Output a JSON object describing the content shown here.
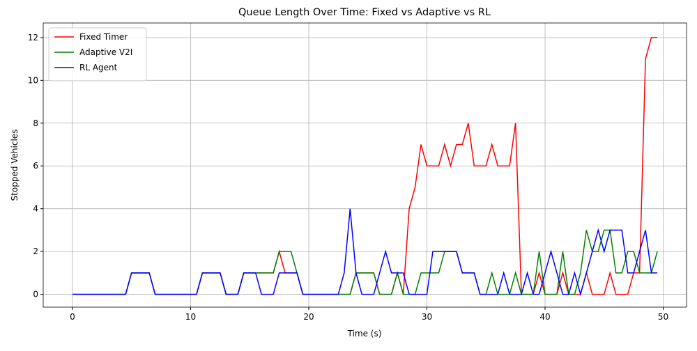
{
  "chart_data": {
    "type": "line",
    "title": "Queue Length Over Time: Fixed vs Adaptive vs RL",
    "xlabel": "Time (s)",
    "ylabel": "Stopped Vehicles",
    "x": [
      0,
      0.5,
      1,
      1.5,
      2,
      2.5,
      3,
      3.5,
      4,
      4.5,
      5,
      5.5,
      6,
      6.5,
      7,
      7.5,
      8,
      8.5,
      9,
      9.5,
      10,
      10.5,
      11,
      11.5,
      12,
      12.5,
      13,
      13.5,
      14,
      14.5,
      15,
      15.5,
      16,
      16.5,
      17,
      17.5,
      18,
      18.5,
      19,
      19.5,
      20,
      20.5,
      21,
      21.5,
      22,
      22.5,
      23,
      23.5,
      24,
      24.5,
      25,
      25.5,
      26,
      26.5,
      27,
      27.5,
      28,
      28.5,
      29,
      29.5,
      30,
      30.5,
      31,
      31.5,
      32,
      32.5,
      33,
      33.5,
      34,
      34.5,
      35,
      35.5,
      36,
      36.5,
      37,
      37.5,
      38,
      38.5,
      39,
      39.5,
      40,
      40.5,
      41,
      41.5,
      42,
      42.5,
      43,
      43.5,
      44,
      44.5,
      45,
      45.5,
      46,
      46.5,
      47,
      47.5,
      48,
      48.5,
      49,
      49.5
    ],
    "series": [
      {
        "name": "Fixed Timer",
        "color": "#ff0000",
        "values": [
          0,
          0,
          0,
          0,
          0,
          0,
          0,
          0,
          0,
          0,
          1,
          1,
          1,
          1,
          0,
          0,
          0,
          0,
          0,
          0,
          0,
          0,
          1,
          1,
          1,
          1,
          0,
          0,
          0,
          1,
          1,
          1,
          1,
          1,
          1,
          2,
          1,
          1,
          1,
          0,
          0,
          0,
          0,
          0,
          0,
          0,
          0,
          0,
          1,
          1,
          1,
          1,
          0,
          0,
          0,
          1,
          0,
          4,
          5,
          7,
          6,
          6,
          6,
          7,
          6,
          7,
          7,
          8,
          6,
          6,
          6,
          7,
          6,
          6,
          6,
          8,
          0,
          0,
          0,
          1,
          0,
          0,
          0,
          1,
          0,
          0,
          0,
          1,
          0,
          0,
          0,
          1,
          0,
          0,
          0,
          1,
          1,
          11,
          12,
          12
        ]
      },
      {
        "name": "Adaptive V2I",
        "color": "#008000",
        "values": [
          0,
          0,
          0,
          0,
          0,
          0,
          0,
          0,
          0,
          0,
          1,
          1,
          1,
          1,
          0,
          0,
          0,
          0,
          0,
          0,
          0,
          0,
          1,
          1,
          1,
          1,
          0,
          0,
          0,
          1,
          1,
          1,
          1,
          1,
          1,
          2,
          2,
          2,
          1,
          0,
          0,
          0,
          0,
          0,
          0,
          0,
          0,
          0,
          1,
          1,
          1,
          1,
          0,
          0,
          0,
          1,
          0,
          0,
          0,
          1,
          1,
          1,
          1,
          2,
          2,
          2,
          1,
          1,
          1,
          0,
          0,
          1,
          0,
          0,
          0,
          1,
          0,
          0,
          0,
          2,
          0,
          0,
          0,
          2,
          0,
          0,
          1,
          3,
          2,
          2,
          3,
          3,
          1,
          1,
          2,
          2,
          1,
          1,
          1,
          2
        ]
      },
      {
        "name": "RL Agent",
        "color": "#0000ff",
        "values": [
          0,
          0,
          0,
          0,
          0,
          0,
          0,
          0,
          0,
          0,
          1,
          1,
          1,
          1,
          0,
          0,
          0,
          0,
          0,
          0,
          0,
          0,
          1,
          1,
          1,
          1,
          0,
          0,
          0,
          1,
          1,
          1,
          0,
          0,
          0,
          1,
          1,
          1,
          1,
          0,
          0,
          0,
          0,
          0,
          0,
          0,
          1,
          4,
          1,
          0,
          0,
          0,
          1,
          2,
          1,
          1,
          1,
          0,
          0,
          0,
          0,
          2,
          2,
          2,
          2,
          2,
          1,
          1,
          1,
          0,
          0,
          0,
          0,
          1,
          0,
          0,
          0,
          1,
          0,
          0,
          1,
          2,
          1,
          0,
          0,
          1,
          0,
          1,
          2,
          3,
          2,
          3,
          3,
          3,
          1,
          1,
          2,
          3,
          1,
          1
        ]
      }
    ],
    "xlim": [
      -2.475,
      51.975
    ],
    "ylim": [
      -0.6,
      12.68
    ],
    "xticks": [
      0,
      10,
      20,
      30,
      40,
      50
    ],
    "yticks": [
      0,
      2,
      4,
      6,
      8,
      10,
      12
    ],
    "grid": true,
    "legend": "upper left"
  }
}
